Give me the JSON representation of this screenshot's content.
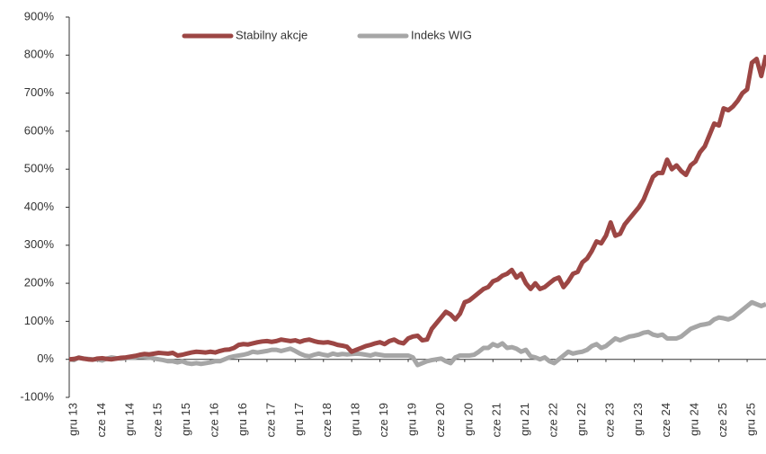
{
  "chart_data": {
    "type": "line",
    "categories": [
      "gru 13",
      null,
      null,
      null,
      null,
      null,
      "cze 14",
      null,
      null,
      null,
      null,
      null,
      "gru 14",
      null,
      null,
      null,
      null,
      null,
      "cze 15",
      null,
      null,
      null,
      null,
      null,
      "gru 15",
      null,
      null,
      null,
      null,
      null,
      "cze 16",
      null,
      null,
      null,
      null,
      null,
      "gru 16",
      null,
      null,
      null,
      null,
      null,
      "cze 17",
      null,
      null,
      null,
      null,
      null,
      "gru 17",
      null,
      null,
      null,
      null,
      null,
      "cze 18",
      null,
      null,
      null,
      null,
      null,
      "gru 18",
      null,
      null,
      null,
      null,
      null,
      "cze 19",
      null,
      null,
      null,
      null,
      null,
      "gru 19",
      null,
      null,
      null,
      null,
      null,
      "cze 20",
      null,
      null,
      null,
      null,
      null,
      "gru 20",
      null,
      null,
      null,
      null,
      null,
      "cze 21",
      null,
      null,
      null,
      null,
      null,
      "gru 21",
      null,
      null,
      null,
      null,
      null,
      "cze 22",
      null,
      null,
      null,
      null,
      null,
      "gru 22",
      null,
      null,
      null,
      null,
      null,
      "cze 23",
      null,
      null,
      null,
      null,
      null,
      "gru 23",
      null,
      null,
      null,
      null,
      null,
      "cze 24",
      null,
      null,
      null,
      null,
      null,
      "gru 24",
      null,
      null,
      null,
      null,
      null,
      "cze 25",
      null,
      null,
      null,
      null,
      null,
      "gru 25",
      null,
      null,
      null,
      null
    ],
    "series": [
      {
        "name": "Stabilny akcje",
        "color": "#9c4644",
        "values": [
          0,
          1,
          4,
          2,
          0,
          -1,
          2,
          3,
          1,
          0,
          2,
          4,
          5,
          7,
          9,
          12,
          14,
          13,
          15,
          17,
          16,
          15,
          17,
          10,
          12,
          15,
          18,
          20,
          19,
          18,
          20,
          18,
          22,
          25,
          26,
          30,
          38,
          40,
          39,
          42,
          45,
          47,
          48,
          46,
          48,
          52,
          50,
          48,
          50,
          46,
          50,
          52,
          48,
          45,
          44,
          45,
          42,
          38,
          36,
          33,
          20,
          25,
          30,
          35,
          38,
          42,
          45,
          40,
          48,
          52,
          45,
          42,
          55,
          60,
          62,
          50,
          52,
          80,
          95,
          110,
          125,
          118,
          105,
          120,
          150,
          155,
          165,
          175,
          185,
          190,
          205,
          210,
          220,
          225,
          235,
          215,
          225,
          200,
          185,
          200,
          185,
          190,
          200,
          210,
          215,
          190,
          205,
          225,
          230,
          255,
          265,
          285,
          310,
          305,
          325,
          360,
          325,
          330,
          355,
          370,
          385,
          400,
          420,
          450,
          480,
          490,
          490,
          525,
          500,
          510,
          495,
          485,
          510,
          520,
          545,
          560,
          590,
          620,
          615,
          660,
          655,
          665,
          680,
          700,
          710,
          780,
          790,
          745,
          800
        ]
      },
      {
        "name": "Indeks WIG",
        "color": "#a6a6a6",
        "values": [
          0,
          -2,
          5,
          2,
          1,
          0,
          0,
          -3,
          2,
          5,
          3,
          2,
          3,
          5,
          5,
          8,
          6,
          5,
          2,
          0,
          -2,
          -5,
          -5,
          -8,
          -5,
          -10,
          -12,
          -10,
          -12,
          -10,
          -8,
          -5,
          -5,
          0,
          5,
          8,
          10,
          12,
          15,
          20,
          18,
          20,
          22,
          25,
          25,
          22,
          25,
          28,
          22,
          15,
          10,
          8,
          12,
          15,
          12,
          10,
          15,
          12,
          14,
          13,
          14,
          15,
          14,
          12,
          10,
          14,
          12,
          10,
          10,
          10,
          10,
          10,
          10,
          5,
          -15,
          -10,
          -5,
          -2,
          0,
          2,
          -5,
          -10,
          5,
          10,
          10,
          10,
          12,
          20,
          30,
          30,
          40,
          35,
          42,
          30,
          32,
          28,
          20,
          25,
          8,
          5,
          0,
          5,
          -5,
          -10,
          0,
          10,
          20,
          15,
          18,
          20,
          25,
          35,
          40,
          30,
          35,
          45,
          55,
          50,
          55,
          60,
          62,
          65,
          70,
          72,
          65,
          62,
          65,
          55,
          55,
          55,
          60,
          70,
          80,
          85,
          90,
          92,
          95,
          105,
          110,
          108,
          105,
          110,
          120,
          130,
          140,
          150,
          145,
          140,
          145
        ]
      }
    ],
    "ylim": [
      -100,
      900
    ],
    "yticks": [
      {
        "value": -100,
        "label": "-100%"
      },
      {
        "value": 0,
        "label": "0%"
      },
      {
        "value": 100,
        "label": "100%"
      },
      {
        "value": 200,
        "label": "200%"
      },
      {
        "value": 300,
        "label": "300%"
      },
      {
        "value": 400,
        "label": "400%"
      },
      {
        "value": 500,
        "label": "500%"
      },
      {
        "value": 600,
        "label": "600%"
      },
      {
        "value": 700,
        "label": "700%"
      },
      {
        "value": 800,
        "label": "800%"
      },
      {
        "value": 900,
        "label": "900%"
      }
    ],
    "grid": false,
    "legend": "top"
  }
}
